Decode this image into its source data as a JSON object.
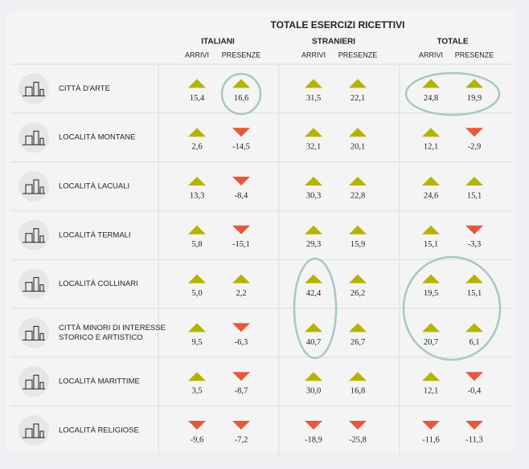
{
  "header": {
    "title": "TOTALE ESERCIZI RICETTIVI",
    "groups": [
      "ITALIANI",
      "STRANIERI",
      "TOTALE"
    ],
    "subheaders": [
      "ARRIVI",
      "PRESENZE",
      "ARRIVI",
      "PRESENZE",
      "ARRIVI",
      "PRESENZE"
    ]
  },
  "table": {
    "rows": [
      {
        "label": [
          "CITTÀ D'ARTE"
        ],
        "values": [
          "15,4",
          "16,6",
          "31,5",
          "22,1",
          "24,8",
          "19,9"
        ]
      },
      {
        "label": [
          "LOCALITÀ MONTANE"
        ],
        "values": [
          "2,6",
          "-14,5",
          "32,1",
          "20,1",
          "12,1",
          "-2,9"
        ]
      },
      {
        "label": [
          "LOCALITÀ LACUALI"
        ],
        "values": [
          "13,3",
          "-8,4",
          "30,3",
          "22,8",
          "24,6",
          "15,1"
        ]
      },
      {
        "label": [
          "LOCALITÀ TERMALI"
        ],
        "values": [
          "5,8",
          "-15,1",
          "29,3",
          "15,9",
          "15,1",
          "-3,3"
        ]
      },
      {
        "label": [
          "LOCALITÀ COLLINARI"
        ],
        "values": [
          "5,0",
          "2,2",
          "42,4",
          "26,2",
          "19,5",
          "15,1"
        ]
      },
      {
        "label": [
          "CITTÀ MINORI DI INTERESSE",
          "STORICO E ARTISTICO"
        ],
        "values": [
          "9,5",
          "-6,3",
          "40,7",
          "26,7",
          "20,7",
          "6,1"
        ]
      },
      {
        "label": [
          "LOCALITÀ MARITTIME"
        ],
        "values": [
          "3,5",
          "-8,7",
          "30,0",
          "16,8",
          "12,1",
          "-0,4"
        ]
      },
      {
        "label": [
          "LOCALITÀ RELIGIOSE"
        ],
        "values": [
          "-9,6",
          "-7,2",
          "-18,9",
          "-25,8",
          "-11,6",
          "-11,3"
        ]
      }
    ]
  }
}
